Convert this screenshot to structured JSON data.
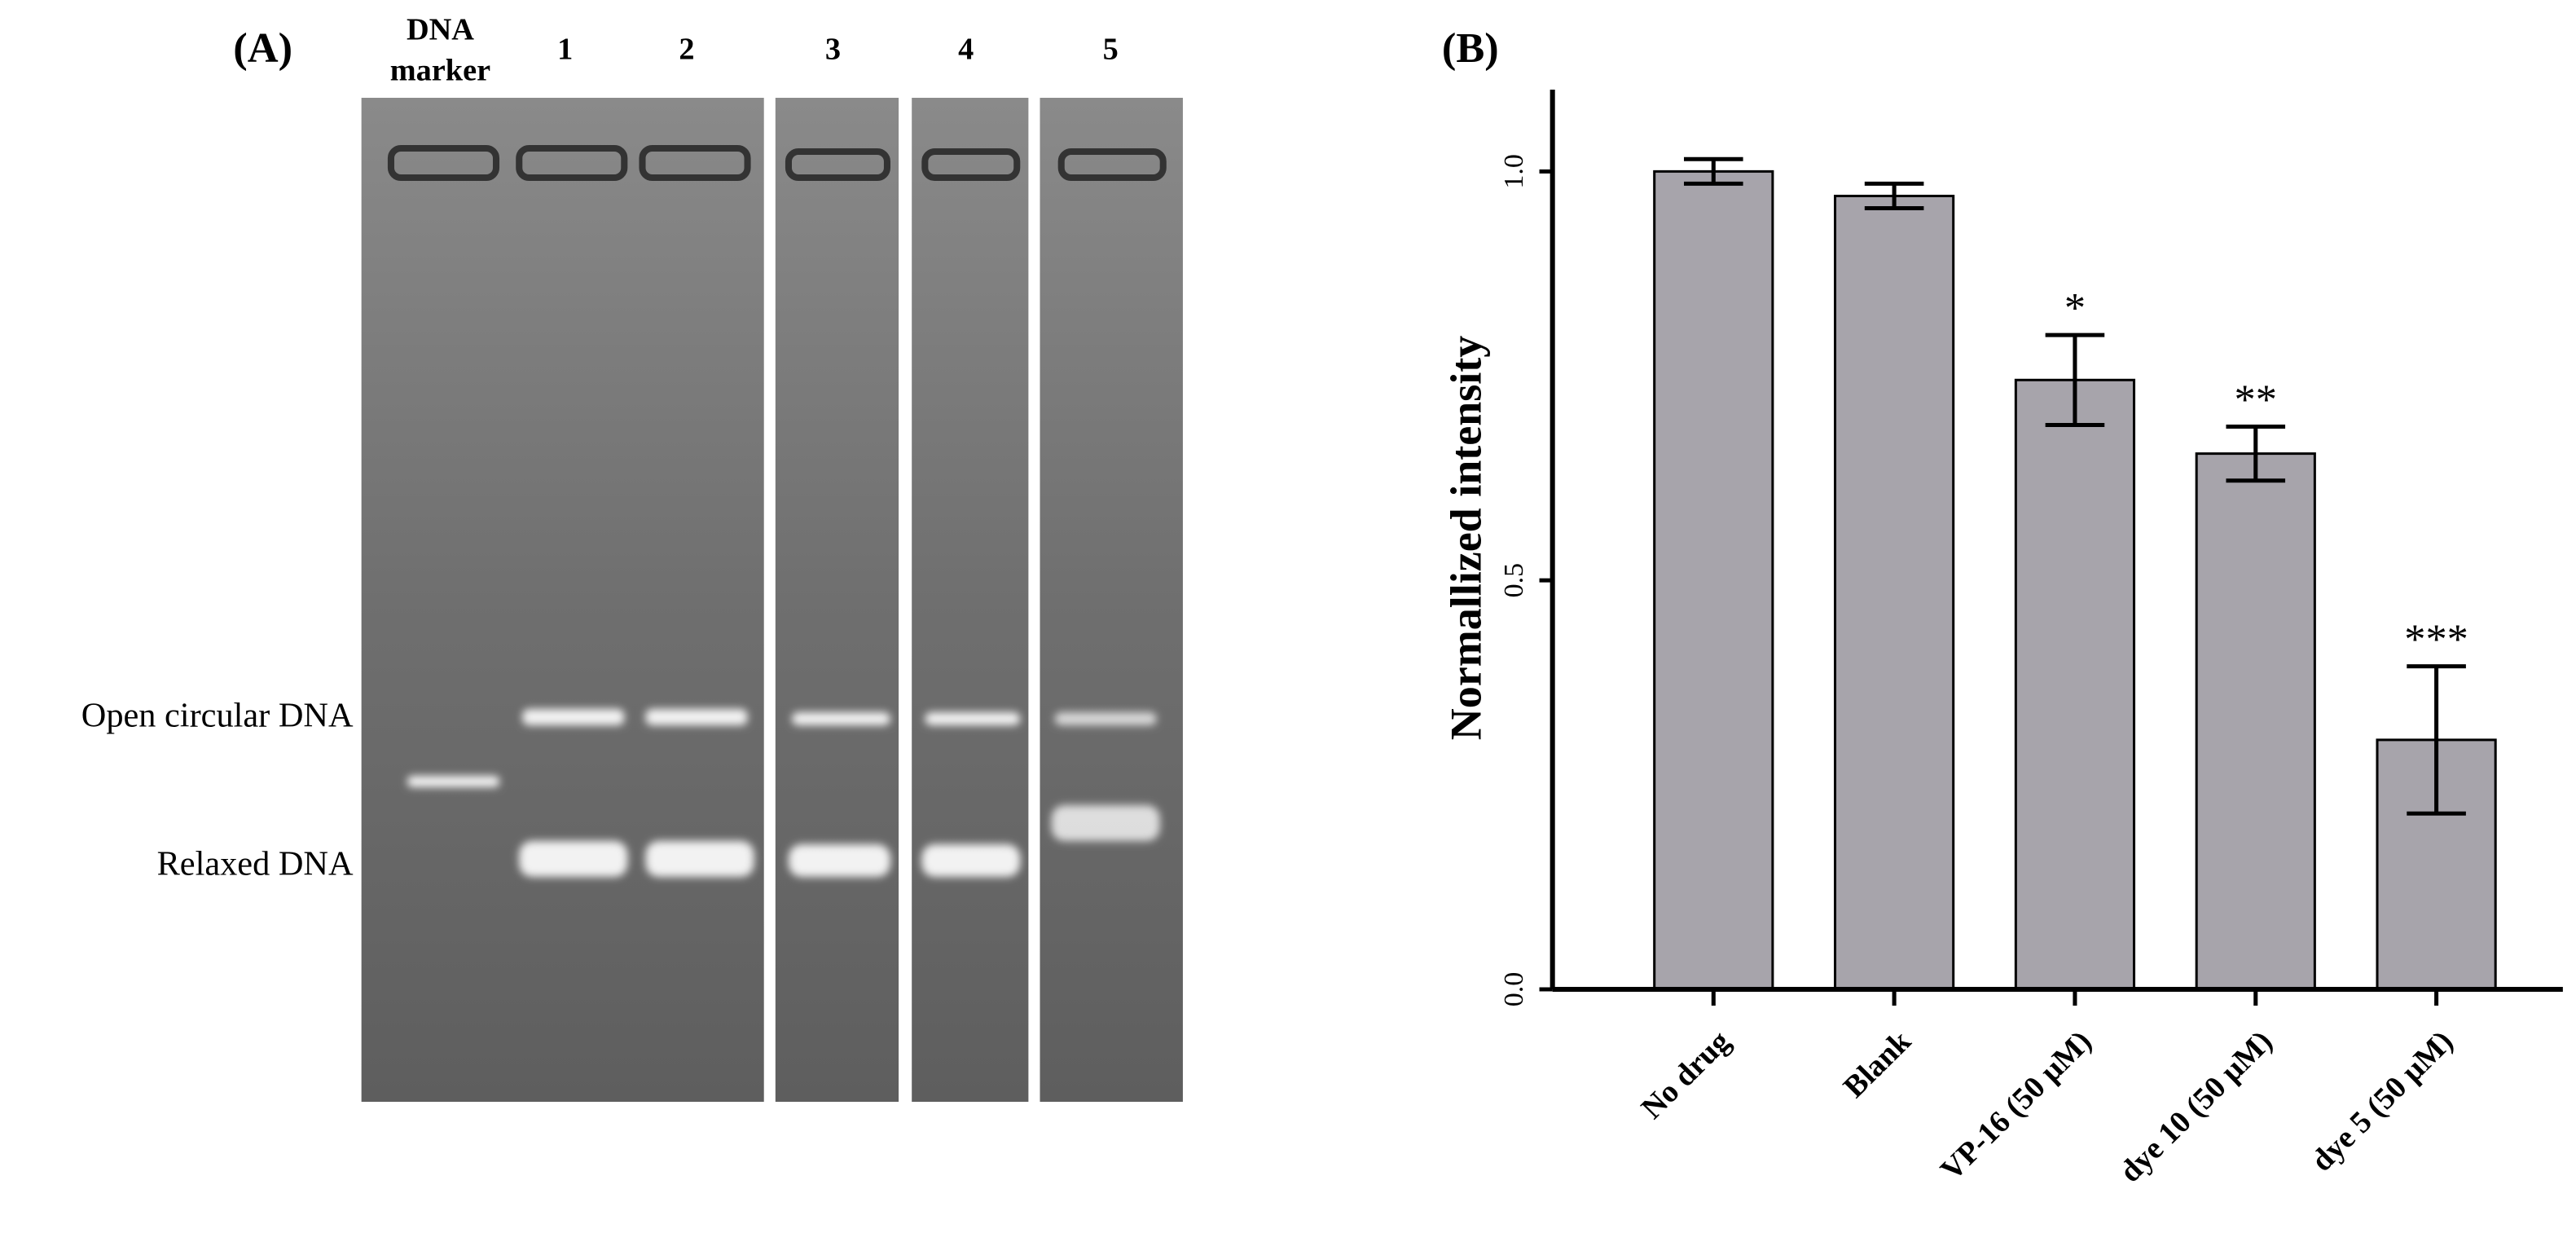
{
  "panel_a": {
    "panel_label": "(A)",
    "marker_label": [
      "DNA",
      "marker"
    ],
    "lane_labels": [
      "1",
      "2",
      "3",
      "4",
      "5"
    ],
    "band_labels": [
      "Open circular DNA",
      "Relaxed DNA"
    ]
  },
  "chart_data": {
    "type": "bar",
    "panel_label": "(B)",
    "y_label": "Normallized intensity",
    "categories": [
      "No drug",
      "Blank",
      "VP-16 (50 μM)",
      "dye 10 (50 μM)",
      "dye 5 (50 μM)"
    ],
    "values": [
      1.0,
      0.97,
      0.745,
      0.655,
      0.305
    ],
    "errors": [
      0.015,
      0.015,
      0.055,
      0.033,
      0.09
    ],
    "significance": [
      null,
      null,
      "*",
      "**",
      "***"
    ],
    "color": "#a7a4ab",
    "ylim": [
      0,
      1.1
    ],
    "yticks": [
      {
        "value": 0,
        "label": "0.0"
      },
      {
        "value": 0.5,
        "label": "0.5"
      },
      {
        "value": 1,
        "label": "1.0"
      }
    ]
  }
}
